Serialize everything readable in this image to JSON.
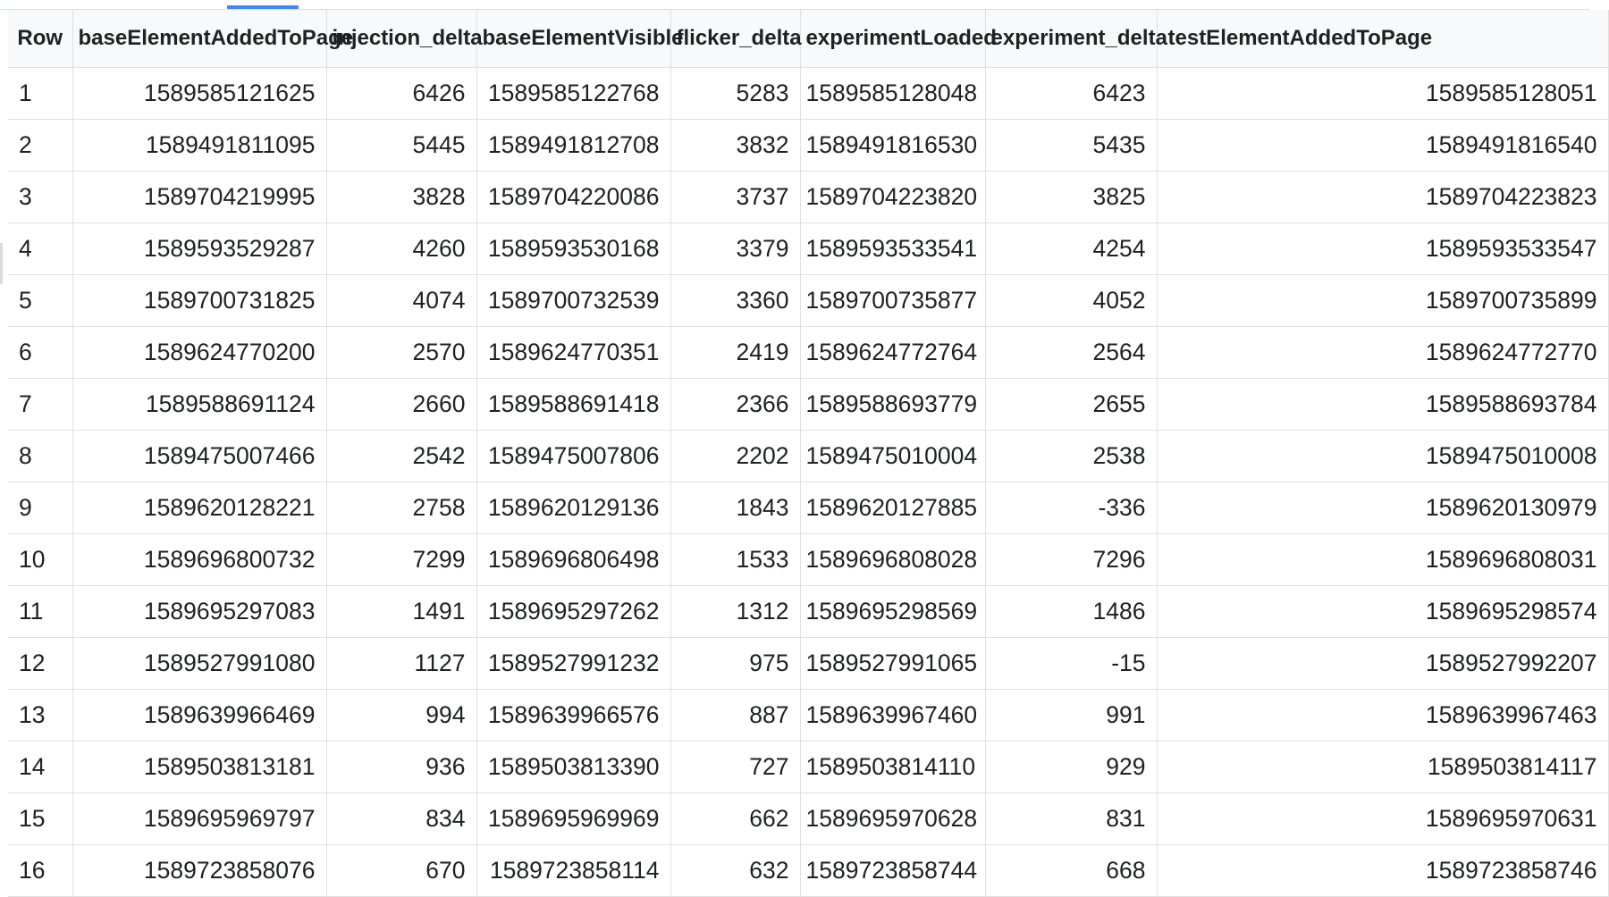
{
  "table": {
    "columns": [
      "Row",
      "baseElementAddedToPage",
      "injection_delta",
      "baseElementVisible",
      "flicker_delta",
      "experimentLoaded",
      "experiment_delta",
      "testElementAddedToPage"
    ],
    "rows": [
      [
        "1",
        "1589585121625",
        "6426",
        "1589585122768",
        "5283",
        "1589585128048",
        "6423",
        "1589585128051"
      ],
      [
        "2",
        "1589491811095",
        "5445",
        "1589491812708",
        "3832",
        "1589491816530",
        "5435",
        "1589491816540"
      ],
      [
        "3",
        "1589704219995",
        "3828",
        "1589704220086",
        "3737",
        "1589704223820",
        "3825",
        "1589704223823"
      ],
      [
        "4",
        "1589593529287",
        "4260",
        "1589593530168",
        "3379",
        "1589593533541",
        "4254",
        "1589593533547"
      ],
      [
        "5",
        "1589700731825",
        "4074",
        "1589700732539",
        "3360",
        "1589700735877",
        "4052",
        "1589700735899"
      ],
      [
        "6",
        "1589624770200",
        "2570",
        "1589624770351",
        "2419",
        "1589624772764",
        "2564",
        "1589624772770"
      ],
      [
        "7",
        "1589588691124",
        "2660",
        "1589588691418",
        "2366",
        "1589588693779",
        "2655",
        "1589588693784"
      ],
      [
        "8",
        "1589475007466",
        "2542",
        "1589475007806",
        "2202",
        "1589475010004",
        "2538",
        "1589475010008"
      ],
      [
        "9",
        "1589620128221",
        "2758",
        "1589620129136",
        "1843",
        "1589620127885",
        "-336",
        "1589620130979"
      ],
      [
        "10",
        "1589696800732",
        "7299",
        "1589696806498",
        "1533",
        "1589696808028",
        "7296",
        "1589696808031"
      ],
      [
        "11",
        "1589695297083",
        "1491",
        "1589695297262",
        "1312",
        "1589695298569",
        "1486",
        "1589695298574"
      ],
      [
        "12",
        "1589527991080",
        "1127",
        "1589527991232",
        "975",
        "1589527991065",
        "-15",
        "1589527992207"
      ],
      [
        "13",
        "1589639966469",
        "994",
        "1589639966576",
        "887",
        "1589639967460",
        "991",
        "1589639967463"
      ],
      [
        "14",
        "1589503813181",
        "936",
        "1589503813390",
        "727",
        "1589503814110",
        "929",
        "1589503814117"
      ],
      [
        "15",
        "1589695969797",
        "834",
        "1589695969969",
        "662",
        "1589695970628",
        "831",
        "1589695970631"
      ],
      [
        "16",
        "1589723858076",
        "670",
        "1589723858114",
        "632",
        "1589723858744",
        "668",
        "1589723858746"
      ]
    ]
  },
  "colors": {
    "header_background": "#f8f9fa",
    "grid_line": "#e0e0e0",
    "tab_indicator": "#4285f4",
    "text": "#202124"
  }
}
